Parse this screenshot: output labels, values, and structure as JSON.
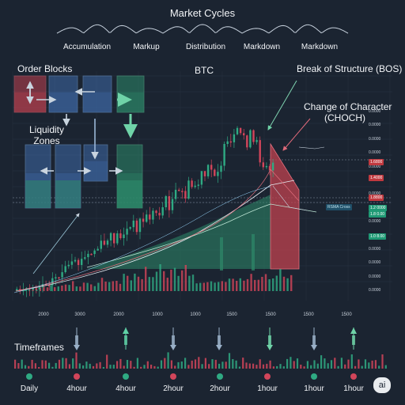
{
  "header": {
    "title": "Market Cycles"
  },
  "phases": [
    "Accumulation",
    "Markup",
    "Distribution",
    "Markdown",
    "Markdown"
  ],
  "labels": {
    "order_blocks": "Order Blocks",
    "liquidity_zones": "Liquidity\nZones",
    "symbol": "BTC",
    "bos": "Break of Structure (BOS)",
    "choch": "Change of Character\n(CHOCH)",
    "timeframes": "Timeframes",
    "ai_badge": "ai"
  },
  "price_labels": [
    "0.0000",
    "0.0000",
    "0.0000",
    "0.0000",
    "0.0000",
    "0.0000",
    "0.0000",
    "0.0000",
    "0.0000",
    "0.0000",
    "0.0000",
    "0.0000",
    "0.0000",
    "0.0000"
  ],
  "price_tags": [
    {
      "text": "1.6800",
      "color": "#c0393f"
    },
    {
      "text": "1.4000",
      "color": "#c0393f"
    },
    {
      "text": "1.8800",
      "color": "#c0393f"
    },
    {
      "text": "1.2 0000",
      "color": "#1f9a75"
    },
    {
      "text": "1.8 0.00",
      "color": "#1f9a75"
    },
    {
      "text": "1.0 8.00",
      "color": "#1f9a75"
    }
  ],
  "ema_tag": "RSMA Cross",
  "colors": {
    "bull": "#2faa83",
    "bear": "#d2455a",
    "bg": "#1b2431",
    "zone_blue": "#3f6aa8",
    "zone_green": "#2d8a6a",
    "zone_red": "#c0414f"
  },
  "chart_data": {
    "type": "candlestick",
    "title": "BTC",
    "x_ticks": [
      "2000",
      "3000",
      "2000",
      "1000",
      "1000",
      "1500",
      "1500",
      "1500",
      "1500"
    ],
    "timeframes": [
      "Daily",
      "4hour",
      "4hour",
      "2hour",
      "2hour",
      "1hour",
      "1hour",
      "1hour"
    ],
    "annotations": [
      "Order Blocks",
      "Liquidity Zones",
      "Break of Structure (BOS)",
      "Change of Character (CHOCH)",
      "RSMA Cross"
    ],
    "close_trend": [
      368,
      367,
      366,
      364,
      363,
      362,
      361,
      358,
      356,
      354,
      351,
      348,
      344,
      340,
      338,
      336,
      333,
      330,
      326,
      322,
      318,
      315,
      312,
      308,
      305,
      302,
      300,
      297,
      294,
      291,
      288,
      285,
      281,
      278,
      276,
      272,
      269,
      266,
      262,
      258,
      255,
      252,
      249,
      246,
      243,
      240,
      236,
      233,
      229,
      225,
      220,
      216,
      210,
      205,
      198,
      193,
      186,
      180,
      176,
      172,
      170,
      178,
      186,
      192,
      196,
      200,
      205,
      208
    ],
    "volume_pattern": [
      1,
      2,
      1,
      3,
      2,
      1,
      2,
      3,
      2,
      4,
      3,
      2,
      5,
      3,
      4,
      6,
      3,
      2,
      5,
      7,
      4,
      3,
      6,
      9,
      5,
      4,
      8,
      6,
      5,
      10,
      7,
      6,
      12,
      9,
      8,
      14,
      10,
      6,
      9,
      16,
      12,
      8,
      18,
      13,
      10,
      22,
      16,
      12,
      9
    ]
  }
}
